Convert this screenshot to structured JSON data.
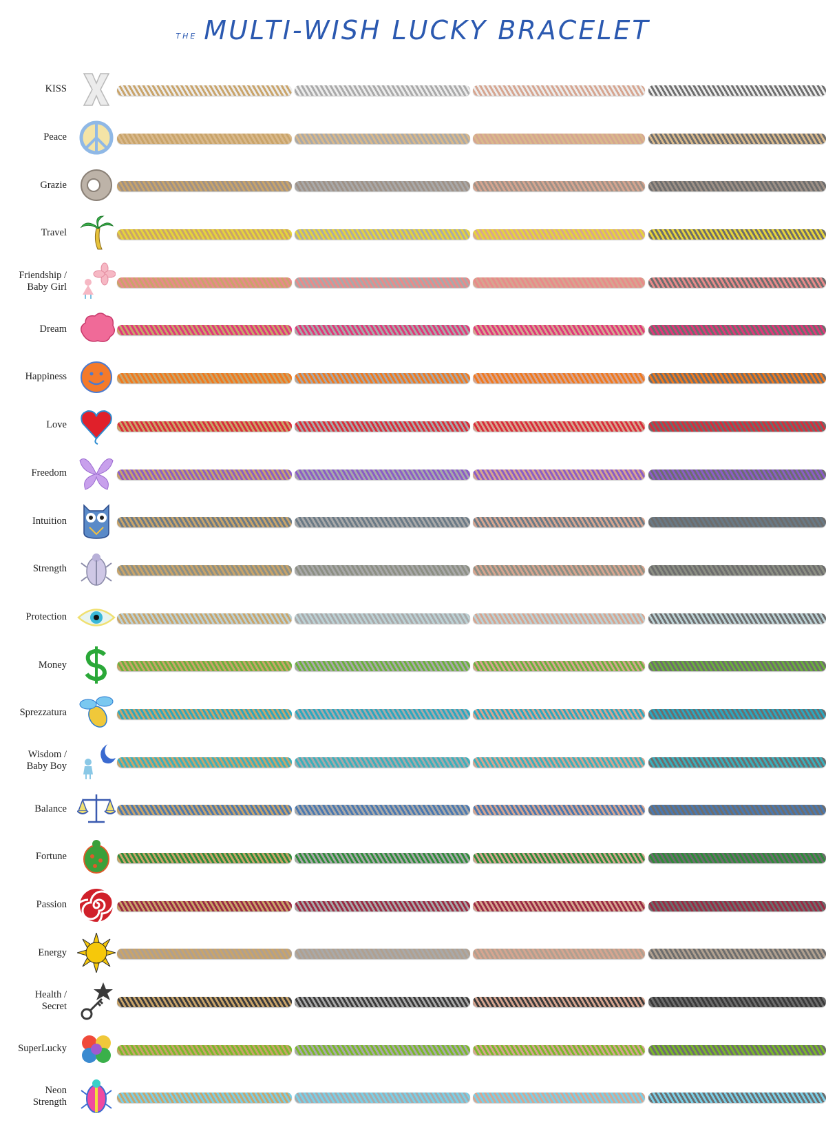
{
  "title": {
    "prefix": "THE",
    "main": "MULTI-WISH LUCKY BRACELET"
  },
  "metal_colors": [
    "#c9a46a",
    "#a9a9a9",
    "#d6a590",
    "#6d6d6d"
  ],
  "rows": [
    {
      "label": "KISS",
      "icon": "x-icon",
      "thread": "#ededed"
    },
    {
      "label": "Peace",
      "icon": "peace-icon",
      "thread": "#d9b98c"
    },
    {
      "label": "Grazie",
      "icon": "ring-icon",
      "thread": "#9e9187"
    },
    {
      "label": "Travel",
      "icon": "palm-tree-icon",
      "thread": "#e6d43a"
    },
    {
      "label": "Friendship /\nBaby Girl",
      "icon": "flower-girl-icon",
      "thread": "#e98a8a"
    },
    {
      "label": "Dream",
      "icon": "cloud-icon",
      "thread": "#e0387a"
    },
    {
      "label": "Happiness",
      "icon": "smiley-icon",
      "thread": "#f0791e"
    },
    {
      "label": "Love",
      "icon": "heart-icon",
      "thread": "#d92c3a"
    },
    {
      "label": "Freedom",
      "icon": "butterfly-icon",
      "thread": "#8a5cc8"
    },
    {
      "label": "Intuition",
      "icon": "owl-icon",
      "thread": "#6a7a86"
    },
    {
      "label": "Strength",
      "icon": "scarab-icon",
      "thread": "#8c8f84"
    },
    {
      "label": "Protection",
      "icon": "eye-icon",
      "thread": "#bcd2d6"
    },
    {
      "label": "Money",
      "icon": "dollar-icon",
      "thread": "#6ab03c"
    },
    {
      "label": "Sprezzatura",
      "icon": "bee-icon",
      "thread": "#2aa8c0"
    },
    {
      "label": "Wisdom /\nBaby Boy",
      "icon": "moon-boy-icon",
      "thread": "#3ab0bc"
    },
    {
      "label": "Balance",
      "icon": "scales-icon",
      "thread": "#4a78b0"
    },
    {
      "label": "Fortune",
      "icon": "turtle-icon",
      "thread": "#2e8a3a"
    },
    {
      "label": "Passion",
      "icon": "spiral-icon",
      "thread": "#9a2a44"
    },
    {
      "label": "Energy",
      "icon": "sun-icon",
      "thread": "#b0a090"
    },
    {
      "label": "Health /\nSecret",
      "icon": "key-star-icon",
      "thread": "#3a3a3a"
    },
    {
      "label": "SuperLucky",
      "icon": "rainbow-clover-icon",
      "thread": "#7ab82a"
    },
    {
      "label": "Neon\nStrength",
      "icon": "neon-scarab-icon",
      "thread": "#7ad0e8"
    }
  ]
}
